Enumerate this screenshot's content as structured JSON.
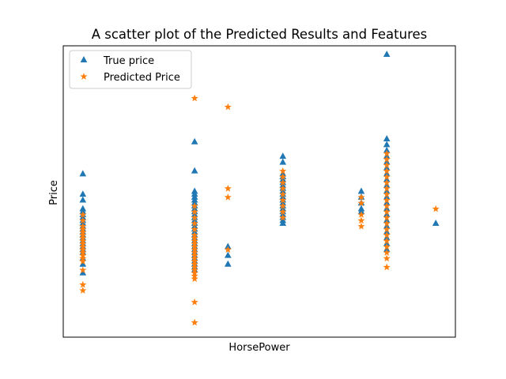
{
  "chart_data": {
    "type": "scatter",
    "title": "A scatter plot of the Predicted Results and Features",
    "xlabel": "HorsePower",
    "ylabel": "Price",
    "xticks": [],
    "yticks": [],
    "xlim": [
      0,
      100
    ],
    "ylim": [
      0,
      100
    ],
    "grid": false,
    "legend": {
      "placement": "top-left",
      "entries": [
        "True price",
        "Predicted Price"
      ]
    },
    "series": [
      {
        "name": "True price",
        "marker": "triangle",
        "color": "#1f77b4",
        "points": [
          [
            5,
            56
          ],
          [
            5,
            49
          ],
          [
            5,
            47
          ],
          [
            5,
            44
          ],
          [
            5,
            43
          ],
          [
            5,
            42
          ],
          [
            5,
            41
          ],
          [
            5,
            40
          ],
          [
            5,
            39
          ],
          [
            5,
            38
          ],
          [
            5,
            37
          ],
          [
            5,
            36
          ],
          [
            5,
            35
          ],
          [
            5,
            34
          ],
          [
            5,
            33
          ],
          [
            5,
            32
          ],
          [
            5,
            31
          ],
          [
            5,
            30
          ],
          [
            5,
            29
          ],
          [
            5,
            27
          ],
          [
            5,
            25
          ],
          [
            5,
            22
          ],
          [
            33.5,
            67
          ],
          [
            33.5,
            57
          ],
          [
            33.5,
            50
          ],
          [
            33.5,
            49
          ],
          [
            33.5,
            48
          ],
          [
            33.5,
            47
          ],
          [
            33.5,
            46
          ],
          [
            33.5,
            45
          ],
          [
            33.5,
            44
          ],
          [
            33.5,
            43
          ],
          [
            33.5,
            42
          ],
          [
            33.5,
            41
          ],
          [
            33.5,
            40
          ],
          [
            33.5,
            39
          ],
          [
            33.5,
            38
          ],
          [
            33.5,
            37
          ],
          [
            33.5,
            36
          ],
          [
            33.5,
            35
          ],
          [
            33.5,
            34
          ],
          [
            33.5,
            33
          ],
          [
            33.5,
            32
          ],
          [
            33.5,
            31
          ],
          [
            33.5,
            30
          ],
          [
            33.5,
            29
          ],
          [
            33.5,
            28
          ],
          [
            33.5,
            27
          ],
          [
            33.5,
            26
          ],
          [
            33.5,
            25
          ],
          [
            33.5,
            24
          ],
          [
            33.5,
            23
          ],
          [
            42,
            31
          ],
          [
            42,
            28
          ],
          [
            42,
            25
          ],
          [
            56,
            62
          ],
          [
            56,
            60
          ],
          [
            56,
            56
          ],
          [
            56,
            55
          ],
          [
            56,
            54
          ],
          [
            56,
            53
          ],
          [
            56,
            52
          ],
          [
            56,
            51
          ],
          [
            56,
            50
          ],
          [
            56,
            49
          ],
          [
            56,
            48
          ],
          [
            56,
            47
          ],
          [
            56,
            46
          ],
          [
            56,
            45
          ],
          [
            56,
            44
          ],
          [
            56,
            43
          ],
          [
            56,
            42
          ],
          [
            56,
            41
          ],
          [
            56,
            40
          ],
          [
            56,
            39
          ],
          [
            76,
            50
          ],
          [
            76,
            48
          ],
          [
            76,
            46
          ],
          [
            76,
            44
          ],
          [
            76,
            43
          ],
          [
            82.5,
            97
          ],
          [
            82.5,
            68
          ],
          [
            82.5,
            66
          ],
          [
            82.5,
            64
          ],
          [
            82.5,
            62
          ],
          [
            82.5,
            60
          ],
          [
            82.5,
            58
          ],
          [
            82.5,
            56
          ],
          [
            82.5,
            54
          ],
          [
            82.5,
            52
          ],
          [
            82.5,
            50
          ],
          [
            82.5,
            48
          ],
          [
            82.5,
            46
          ],
          [
            82.5,
            44
          ],
          [
            82.5,
            42
          ],
          [
            82.5,
            40
          ],
          [
            82.5,
            38
          ],
          [
            82.5,
            36
          ],
          [
            82.5,
            34
          ],
          [
            82.5,
            32
          ],
          [
            82.5,
            30
          ],
          [
            95,
            39
          ]
        ]
      },
      {
        "name": "Predicted Price",
        "marker": "star",
        "color": "#ff7f0e",
        "points": [
          [
            5,
            42
          ],
          [
            5,
            40
          ],
          [
            5,
            38
          ],
          [
            5,
            37
          ],
          [
            5,
            36
          ],
          [
            5,
            35
          ],
          [
            5,
            34
          ],
          [
            5,
            33
          ],
          [
            5,
            32
          ],
          [
            5,
            31
          ],
          [
            5,
            30
          ],
          [
            5,
            29
          ],
          [
            5,
            28
          ],
          [
            5,
            27
          ],
          [
            5,
            26
          ],
          [
            5,
            23
          ],
          [
            5,
            18
          ],
          [
            5,
            16
          ],
          [
            33.5,
            82
          ],
          [
            33.5,
            45
          ],
          [
            33.5,
            43
          ],
          [
            33.5,
            41
          ],
          [
            33.5,
            39
          ],
          [
            33.5,
            37
          ],
          [
            33.5,
            35
          ],
          [
            33.5,
            34
          ],
          [
            33.5,
            33
          ],
          [
            33.5,
            32
          ],
          [
            33.5,
            31
          ],
          [
            33.5,
            30
          ],
          [
            33.5,
            29
          ],
          [
            33.5,
            28
          ],
          [
            33.5,
            27
          ],
          [
            33.5,
            26
          ],
          [
            33.5,
            25
          ],
          [
            33.5,
            24
          ],
          [
            33.5,
            23
          ],
          [
            33.5,
            22
          ],
          [
            33.5,
            21
          ],
          [
            33.5,
            20
          ],
          [
            33.5,
            12
          ],
          [
            33.5,
            5
          ],
          [
            42,
            79
          ],
          [
            42,
            51
          ],
          [
            42,
            48
          ],
          [
            42,
            30
          ],
          [
            56,
            57
          ],
          [
            56,
            55
          ],
          [
            56,
            53
          ],
          [
            56,
            51
          ],
          [
            56,
            49
          ],
          [
            56,
            47
          ],
          [
            56,
            45
          ],
          [
            56,
            43
          ],
          [
            56,
            41
          ],
          [
            76,
            48
          ],
          [
            76,
            46
          ],
          [
            76,
            42
          ],
          [
            76,
            40
          ],
          [
            76,
            38
          ],
          [
            82.5,
            63
          ],
          [
            82.5,
            61
          ],
          [
            82.5,
            59
          ],
          [
            82.5,
            57
          ],
          [
            82.5,
            55
          ],
          [
            82.5,
            53
          ],
          [
            82.5,
            51
          ],
          [
            82.5,
            49
          ],
          [
            82.5,
            47
          ],
          [
            82.5,
            45
          ],
          [
            82.5,
            43
          ],
          [
            82.5,
            41
          ],
          [
            82.5,
            39
          ],
          [
            82.5,
            37
          ],
          [
            82.5,
            35
          ],
          [
            82.5,
            33
          ],
          [
            82.5,
            31
          ],
          [
            82.5,
            29
          ],
          [
            82.5,
            27
          ],
          [
            82.5,
            24
          ],
          [
            95,
            44
          ]
        ]
      }
    ]
  }
}
